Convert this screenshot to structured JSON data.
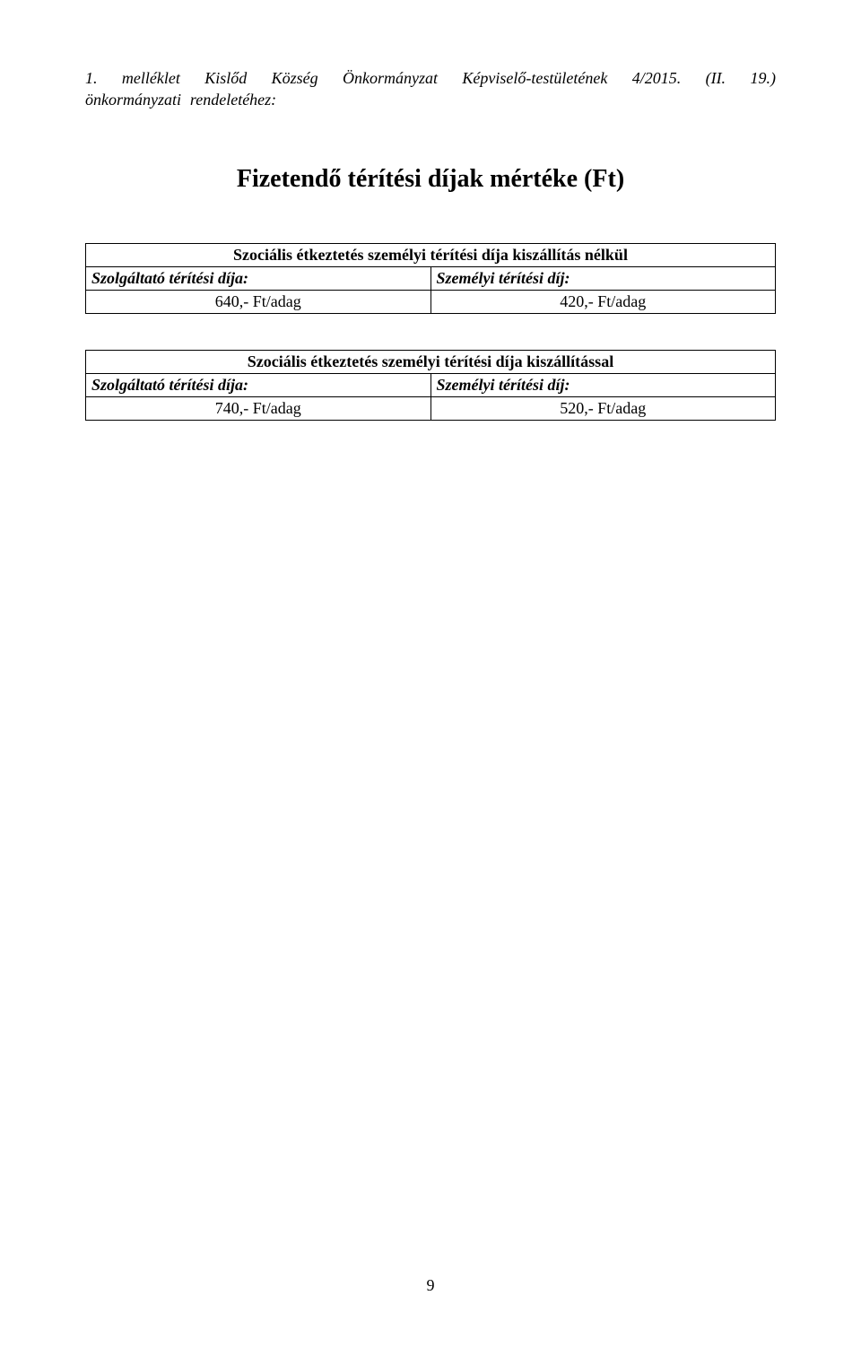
{
  "header": {
    "line1_parts": [
      "1.",
      "melléklet",
      "Kislőd",
      "Község",
      "Önkormányzat",
      "Képviselő-testületének",
      "4/2015.",
      "(II.",
      "19.)"
    ],
    "line2": "önkormányzati rendeletéhez:"
  },
  "title": "Fizetendő térítési díjak mértéke (Ft)",
  "table1": {
    "header": "Szociális étkeztetés személyi térítési díja kiszállítás nélkül",
    "subheader_left": "Szolgáltató térítési díja:",
    "subheader_right": "Személyi térítési díj:",
    "value_left": "640,- Ft/adag",
    "value_right": "420,- Ft/adag"
  },
  "table2": {
    "header": "Szociális étkeztetés személyi térítési díja kiszállítással",
    "subheader_left": "Szolgáltató térítési díja:",
    "subheader_right": "Személyi térítési díj:",
    "value_left": "740,- Ft/adag",
    "value_right": "520,- Ft/adag"
  },
  "page_number": "9"
}
